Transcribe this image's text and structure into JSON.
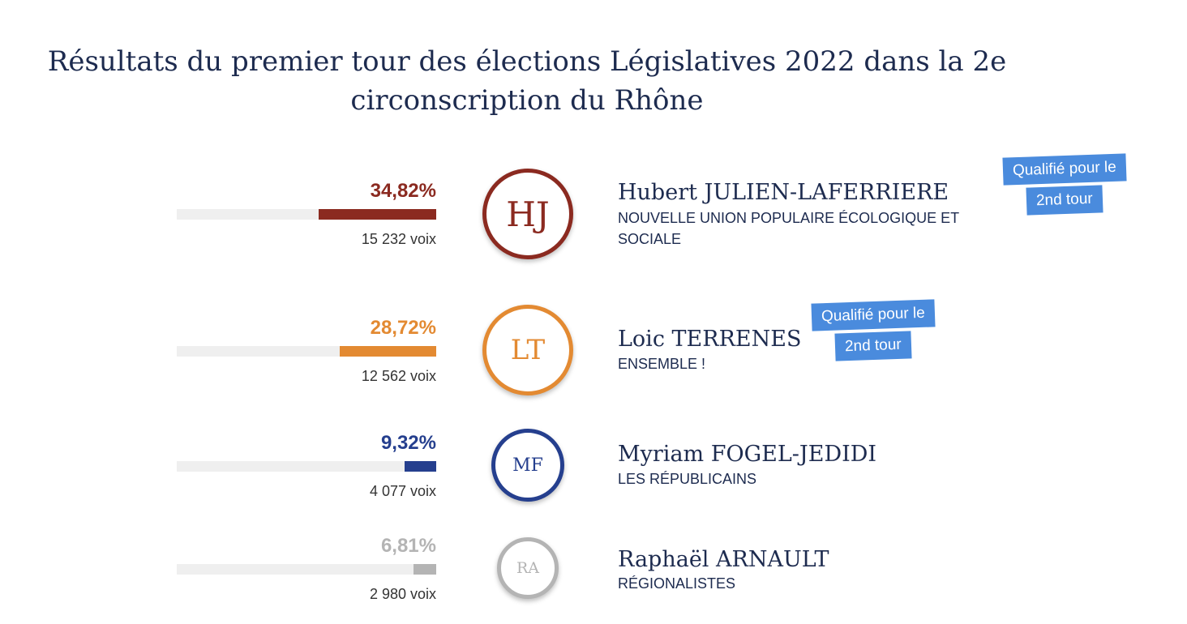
{
  "title": "Résultats du premier tour des élections Législatives 2022 dans la 2e circonscription du Rhône",
  "badge_text": {
    "line1": "Qualifié pour le",
    "line2": "2nd tour"
  },
  "chart_data": {
    "type": "bar",
    "title": "Résultats du premier tour des élections Législatives 2022 dans la 2e circonscription du Rhône",
    "unit": "%",
    "categories": [
      "Hubert JULIEN-LAFERRIERE",
      "Loic TERRENES",
      "Myriam FOGEL-JEDIDI",
      "Raphaël ARNAULT"
    ],
    "values": [
      34.82,
      28.72,
      9.32,
      6.81
    ],
    "candidates": [
      {
        "initials": "HJ",
        "name": "Hubert JULIEN-LAFERRIERE",
        "party": "NOUVELLE UNION POPULAIRE ÉCOLOGIQUE ET SOCIALE",
        "percent": 34.82,
        "percent_label": "34,82%",
        "votes_label": "15 232 voix",
        "color": "#8b2a20",
        "qualified": true
      },
      {
        "initials": "LT",
        "name": "Loic TERRENES",
        "party": "ENSEMBLE !",
        "percent": 28.72,
        "percent_label": "28,72%",
        "votes_label": "12 562 voix",
        "color": "#e38a32",
        "qualified": true
      },
      {
        "initials": "MF",
        "name": "Myriam FOGEL-JEDIDI",
        "party": "LES RÉPUBLICAINS",
        "percent": 9.32,
        "percent_label": "9,32%",
        "votes_label": "4 077 voix",
        "color": "#253f8e",
        "qualified": false
      },
      {
        "initials": "RA",
        "name": "Raphaël ARNAULT",
        "party": "RÉGIONALISTES",
        "percent": 6.81,
        "percent_label": "6,81%",
        "votes_label": "2 980 voix",
        "color": "#b4b4b4",
        "qualified": false
      }
    ]
  }
}
